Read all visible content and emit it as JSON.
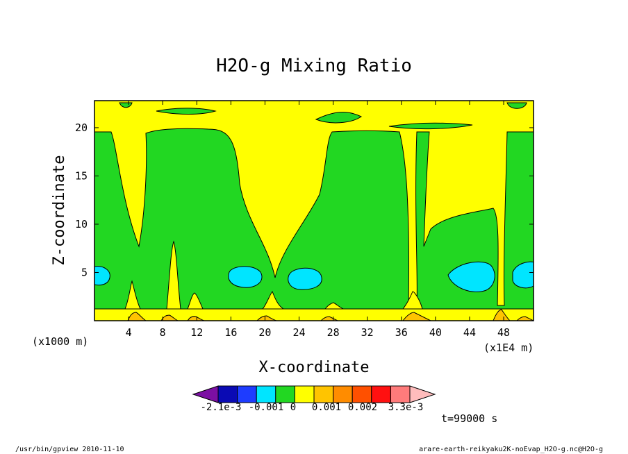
{
  "chart_data": {
    "type": "contour",
    "title": "H2O-g Mixing Ratio",
    "xlabel": "X-coordinate",
    "ylabel": "Z-coordinate",
    "x_scale_note": "(x1E4 m)",
    "y_scale_note": "(x1000 m)",
    "xlim": [
      0,
      51.5
    ],
    "ylim": [
      0,
      22.8
    ],
    "x_ticks": [
      4,
      8,
      12,
      16,
      20,
      24,
      28,
      32,
      36,
      40,
      44,
      48
    ],
    "y_ticks": [
      5,
      10,
      15,
      20
    ],
    "time_label": "t=99000 s",
    "colorbar": {
      "labels": [
        "-2.1e-3",
        "-0.001",
        "0",
        "0.001",
        "0.002",
        "3.3e-3"
      ],
      "colors": [
        "#7b0fa3",
        "#0a0ab4",
        "#1e3cff",
        "#00e5ff",
        "#22d722",
        "#ffff00",
        "#ffc400",
        "#ff8c00",
        "#ff5000",
        "#ff1010",
        "#ff7b7b",
        "#ffbcbc"
      ]
    },
    "regions": [
      {
        "level": "yellow",
        "fill": "#ffff00"
      },
      {
        "level": "green",
        "fill": "#22d722"
      },
      {
        "level": "cyan",
        "fill": "#00e5ff"
      },
      {
        "level": "orange",
        "fill": "#ffc400"
      }
    ]
  },
  "footer": {
    "left": "/usr/bin/gpview   2010-11-10",
    "right": "arare-earth-reikyaku2K-noEvap_H2O-g.nc@H2O-g"
  }
}
